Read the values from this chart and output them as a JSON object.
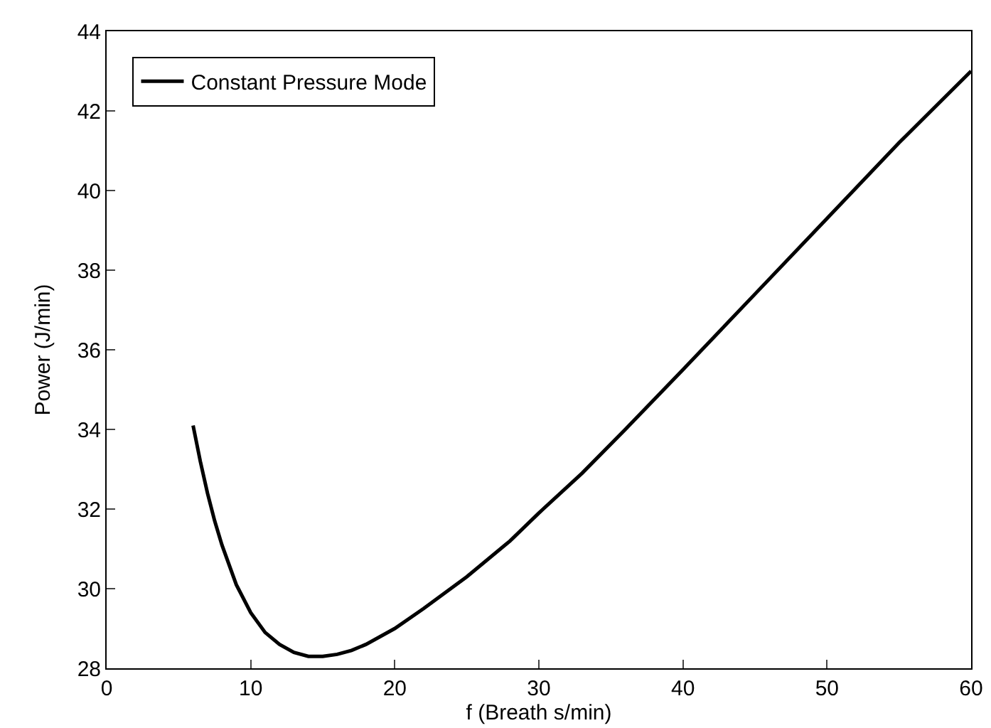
{
  "chart_data": {
    "type": "line",
    "xlabel": "f (Breath s/min)",
    "ylabel": "Power (J/min)",
    "x": [
      6,
      6.5,
      7,
      7.5,
      8,
      9,
      10,
      11,
      12,
      13,
      14,
      15,
      16,
      17,
      18,
      20,
      22,
      25,
      28,
      30,
      33,
      36,
      40,
      45,
      50,
      55,
      60
    ],
    "series": [
      {
        "name": "Constant Pressure Mode",
        "color": "#000000",
        "values": [
          34.1,
          33.2,
          32.4,
          31.7,
          31.1,
          30.1,
          29.4,
          28.9,
          28.6,
          28.4,
          28.3,
          28.3,
          28.35,
          28.45,
          28.6,
          29.0,
          29.5,
          30.3,
          31.2,
          31.9,
          32.9,
          34.0,
          35.5,
          37.4,
          39.3,
          41.2,
          43.0
        ]
      }
    ],
    "xlim": [
      0,
      60
    ],
    "xticks": [
      0,
      10,
      20,
      30,
      40,
      50,
      60
    ],
    "ylim": [
      28,
      44
    ],
    "yticks": [
      28,
      30,
      32,
      34,
      36,
      38,
      40,
      42,
      44
    ],
    "grid": false,
    "legend": "top left",
    "marker": "none",
    "line_style": "solid"
  }
}
